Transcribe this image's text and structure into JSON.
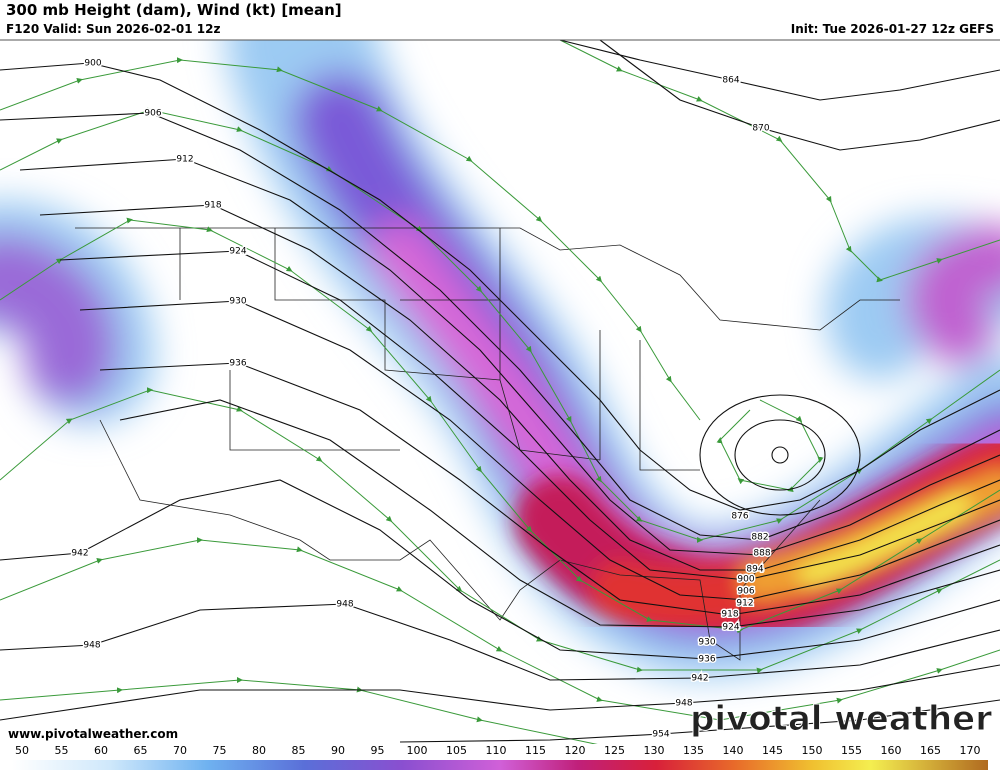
{
  "header": {
    "title": "300 mb Height (dam), Wind (kt) [mean]",
    "subtitle": "F120 Valid: Sun 2026-02-01 12z",
    "init": "Init: Tue 2026-01-27 12z GEFS"
  },
  "contour_labels": [
    900,
    906,
    912,
    918,
    924,
    930,
    936,
    942,
    948,
    948,
    864,
    870,
    876,
    882,
    888,
    894,
    900,
    906,
    912,
    918,
    924,
    930,
    936,
    942,
    948,
    954
  ],
  "footer": {
    "website": "www.pivotalweather.com",
    "brand": "pivotal weather"
  },
  "colorbar": {
    "ticks": [
      50,
      55,
      60,
      65,
      70,
      75,
      80,
      85,
      90,
      95,
      100,
      105,
      110,
      115,
      120,
      125,
      130,
      135,
      140,
      145,
      150,
      155,
      160,
      165,
      170
    ]
  }
}
